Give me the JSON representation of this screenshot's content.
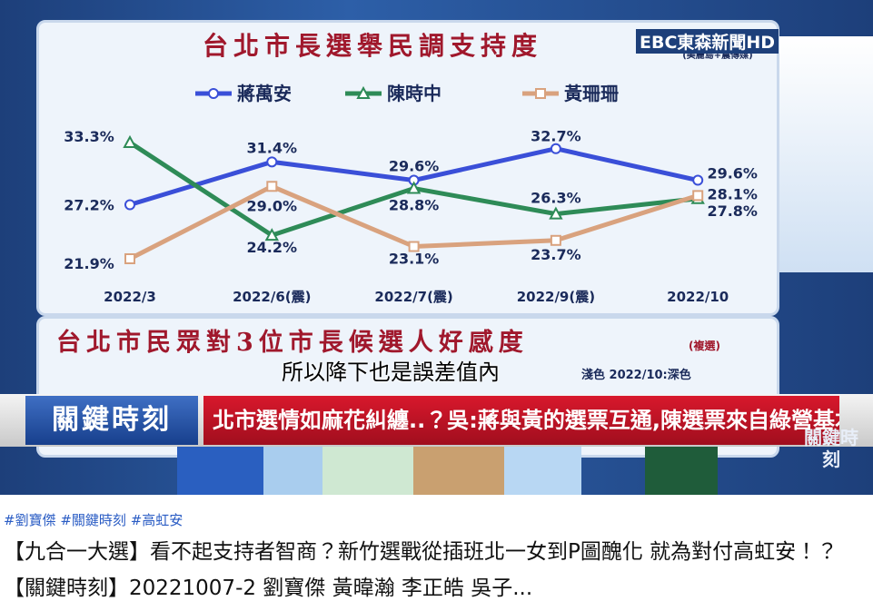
{
  "channel_logo": "EBC東森新聞HD",
  "chart_data": {
    "type": "line",
    "title": "台北市長選舉民調支持度",
    "source": "(美麗島+震傳媒)",
    "categories": [
      "2022/3",
      "2022/6(震)",
      "2022/7(震)",
      "2022/9(震)",
      "2022/10"
    ],
    "series": [
      {
        "name": "蔣萬安",
        "color": "#3a4fd8",
        "marker": "circle",
        "values": [
          27.2,
          31.4,
          29.6,
          32.7,
          29.6
        ],
        "value_labels": [
          "27.2%",
          "31.4%",
          "29.6%",
          "32.7%",
          "29.6%"
        ]
      },
      {
        "name": "陳時中",
        "color": "#2e8b57",
        "marker": "triangle",
        "values": [
          33.3,
          24.2,
          28.8,
          26.3,
          27.8
        ],
        "value_labels": [
          "33.3%",
          "24.2%",
          "28.8%",
          "26.3%",
          "27.8%"
        ]
      },
      {
        "name": "黃珊珊",
        "color": "#d9a27e",
        "marker": "square",
        "values": [
          21.9,
          29.0,
          23.1,
          23.7,
          28.1
        ],
        "value_labels": [
          "21.9%",
          "29.0%",
          "23.1%",
          "23.7%",
          "28.1%"
        ]
      }
    ]
  },
  "second_panel": {
    "title": "台北市民眾對3位市長候選人好感度",
    "note": "(複選)",
    "legend_note": "淺色  2022/10:深色"
  },
  "caption": "所以降下也是誤差值內",
  "program_banner": "關鍵時刻",
  "headline": "北市選情如麻花糾纏..？吳:蔣與黃的選票互通,陳選票來自綠營基本盤!",
  "corner_logo": "關鍵時刻",
  "hashtags": [
    "#劉寶傑",
    "#關鍵時刻",
    "#高虹安"
  ],
  "video_title": "【九合一大選】看不起支持者智商？新竹選戰從插班北一女到P圖醜化 就為對付高虹安！？【關鍵時刻】20221007-2 劉寶傑 黃暐瀚 李正皓 吳子..."
}
